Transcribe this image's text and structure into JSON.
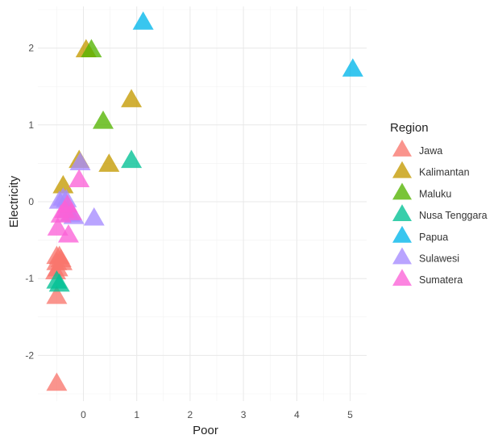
{
  "chart_data": {
    "type": "scatter",
    "marker": "triangle",
    "xlabel": "Poor",
    "ylabel": "Electricity",
    "xlim": [
      -0.9,
      5.35
    ],
    "ylim": [
      -2.5,
      2.5
    ],
    "x_ticks": [
      0,
      1,
      2,
      3,
      4,
      5
    ],
    "y_ticks": [
      -2,
      -1,
      0,
      1,
      2
    ],
    "grid": true,
    "legend": {
      "title": "Region",
      "placement": "right"
    },
    "series": [
      {
        "name": "Jawa",
        "color": "#F8766D",
        "points": [
          [
            -0.5,
            -0.72
          ],
          [
            -0.45,
            -0.72
          ],
          [
            -0.42,
            -0.76
          ],
          [
            -0.5,
            -0.8
          ],
          [
            -0.4,
            -0.8
          ],
          [
            -0.48,
            -0.88
          ],
          [
            -0.52,
            -0.92
          ],
          [
            -0.5,
            -1.24
          ],
          [
            -0.5,
            -2.37
          ]
        ]
      },
      {
        "name": "Kalimantan",
        "color": "#C49A00",
        "points": [
          [
            0.05,
            1.97
          ],
          [
            0.9,
            1.32
          ],
          [
            -0.08,
            0.53
          ],
          [
            0.48,
            0.48
          ],
          [
            -0.38,
            0.2
          ]
        ]
      },
      {
        "name": "Maluku",
        "color": "#53B400",
        "points": [
          [
            0.15,
            1.97
          ],
          [
            0.37,
            1.04
          ]
        ]
      },
      {
        "name": "Nusa Tenggara",
        "color": "#00C094",
        "points": [
          [
            0.9,
            0.53
          ],
          [
            -0.5,
            -1.04
          ],
          [
            -0.45,
            -1.08
          ]
        ]
      },
      {
        "name": "Papua",
        "color": "#00B6EB",
        "points": [
          [
            1.12,
            2.33
          ],
          [
            5.05,
            1.72
          ]
        ]
      },
      {
        "name": "Sulawesi",
        "color": "#A58AFF",
        "points": [
          [
            -0.06,
            0.5
          ],
          [
            -0.38,
            0.04
          ],
          [
            -0.32,
            0.02
          ],
          [
            -0.45,
            0.0
          ],
          [
            -0.3,
            -0.12
          ],
          [
            -0.25,
            -0.17
          ],
          [
            -0.18,
            -0.2
          ],
          [
            0.2,
            -0.22
          ]
        ]
      },
      {
        "name": "Sumatera",
        "color": "#FB61D7",
        "points": [
          [
            -0.08,
            0.28
          ],
          [
            -0.3,
            -0.05
          ],
          [
            -0.35,
            -0.12
          ],
          [
            -0.42,
            -0.18
          ],
          [
            -0.22,
            -0.15
          ],
          [
            -0.48,
            -0.35
          ],
          [
            -0.28,
            -0.44
          ]
        ]
      }
    ]
  }
}
